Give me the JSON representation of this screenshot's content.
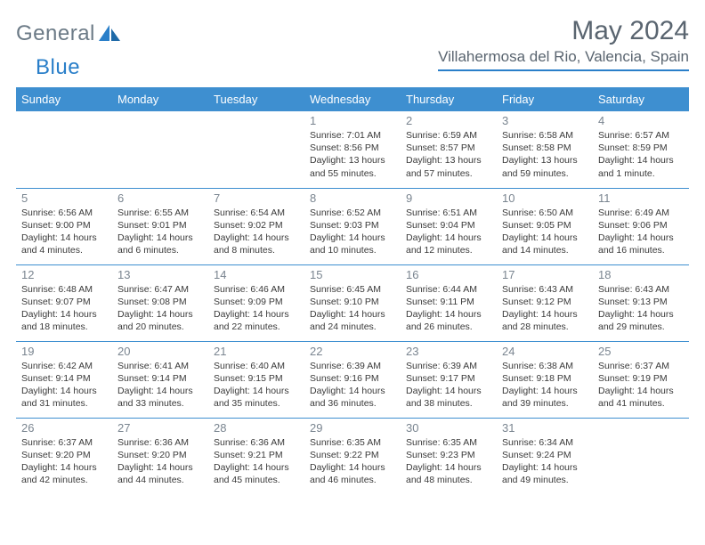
{
  "brand": {
    "part1": "General",
    "part2": "Blue"
  },
  "title": "May 2024",
  "location": "Villahermosa del Rio, Valencia, Spain",
  "colors": {
    "header_bg": "#3e8fd0",
    "header_text": "#ffffff",
    "rule": "#3e8fd0",
    "daynum": "#7a8590",
    "body_text": "#3a3a3a",
    "title_text": "#5a6570",
    "logo_gray": "#6b7a86",
    "logo_blue": "#2a7fc9",
    "background": "#ffffff"
  },
  "day_headers": [
    "Sunday",
    "Monday",
    "Tuesday",
    "Wednesday",
    "Thursday",
    "Friday",
    "Saturday"
  ],
  "weeks": [
    [
      null,
      null,
      null,
      {
        "n": "1",
        "sr": "7:01 AM",
        "ss": "8:56 PM",
        "dl": "13 hours and 55 minutes."
      },
      {
        "n": "2",
        "sr": "6:59 AM",
        "ss": "8:57 PM",
        "dl": "13 hours and 57 minutes."
      },
      {
        "n": "3",
        "sr": "6:58 AM",
        "ss": "8:58 PM",
        "dl": "13 hours and 59 minutes."
      },
      {
        "n": "4",
        "sr": "6:57 AM",
        "ss": "8:59 PM",
        "dl": "14 hours and 1 minute."
      }
    ],
    [
      {
        "n": "5",
        "sr": "6:56 AM",
        "ss": "9:00 PM",
        "dl": "14 hours and 4 minutes."
      },
      {
        "n": "6",
        "sr": "6:55 AM",
        "ss": "9:01 PM",
        "dl": "14 hours and 6 minutes."
      },
      {
        "n": "7",
        "sr": "6:54 AM",
        "ss": "9:02 PM",
        "dl": "14 hours and 8 minutes."
      },
      {
        "n": "8",
        "sr": "6:52 AM",
        "ss": "9:03 PM",
        "dl": "14 hours and 10 minutes."
      },
      {
        "n": "9",
        "sr": "6:51 AM",
        "ss": "9:04 PM",
        "dl": "14 hours and 12 minutes."
      },
      {
        "n": "10",
        "sr": "6:50 AM",
        "ss": "9:05 PM",
        "dl": "14 hours and 14 minutes."
      },
      {
        "n": "11",
        "sr": "6:49 AM",
        "ss": "9:06 PM",
        "dl": "14 hours and 16 minutes."
      }
    ],
    [
      {
        "n": "12",
        "sr": "6:48 AM",
        "ss": "9:07 PM",
        "dl": "14 hours and 18 minutes."
      },
      {
        "n": "13",
        "sr": "6:47 AM",
        "ss": "9:08 PM",
        "dl": "14 hours and 20 minutes."
      },
      {
        "n": "14",
        "sr": "6:46 AM",
        "ss": "9:09 PM",
        "dl": "14 hours and 22 minutes."
      },
      {
        "n": "15",
        "sr": "6:45 AM",
        "ss": "9:10 PM",
        "dl": "14 hours and 24 minutes."
      },
      {
        "n": "16",
        "sr": "6:44 AM",
        "ss": "9:11 PM",
        "dl": "14 hours and 26 minutes."
      },
      {
        "n": "17",
        "sr": "6:43 AM",
        "ss": "9:12 PM",
        "dl": "14 hours and 28 minutes."
      },
      {
        "n": "18",
        "sr": "6:43 AM",
        "ss": "9:13 PM",
        "dl": "14 hours and 29 minutes."
      }
    ],
    [
      {
        "n": "19",
        "sr": "6:42 AM",
        "ss": "9:14 PM",
        "dl": "14 hours and 31 minutes."
      },
      {
        "n": "20",
        "sr": "6:41 AM",
        "ss": "9:14 PM",
        "dl": "14 hours and 33 minutes."
      },
      {
        "n": "21",
        "sr": "6:40 AM",
        "ss": "9:15 PM",
        "dl": "14 hours and 35 minutes."
      },
      {
        "n": "22",
        "sr": "6:39 AM",
        "ss": "9:16 PM",
        "dl": "14 hours and 36 minutes."
      },
      {
        "n": "23",
        "sr": "6:39 AM",
        "ss": "9:17 PM",
        "dl": "14 hours and 38 minutes."
      },
      {
        "n": "24",
        "sr": "6:38 AM",
        "ss": "9:18 PM",
        "dl": "14 hours and 39 minutes."
      },
      {
        "n": "25",
        "sr": "6:37 AM",
        "ss": "9:19 PM",
        "dl": "14 hours and 41 minutes."
      }
    ],
    [
      {
        "n": "26",
        "sr": "6:37 AM",
        "ss": "9:20 PM",
        "dl": "14 hours and 42 minutes."
      },
      {
        "n": "27",
        "sr": "6:36 AM",
        "ss": "9:20 PM",
        "dl": "14 hours and 44 minutes."
      },
      {
        "n": "28",
        "sr": "6:36 AM",
        "ss": "9:21 PM",
        "dl": "14 hours and 45 minutes."
      },
      {
        "n": "29",
        "sr": "6:35 AM",
        "ss": "9:22 PM",
        "dl": "14 hours and 46 minutes."
      },
      {
        "n": "30",
        "sr": "6:35 AM",
        "ss": "9:23 PM",
        "dl": "14 hours and 48 minutes."
      },
      {
        "n": "31",
        "sr": "6:34 AM",
        "ss": "9:24 PM",
        "dl": "14 hours and 49 minutes."
      },
      null
    ]
  ],
  "labels": {
    "sunrise": "Sunrise:",
    "sunset": "Sunset:",
    "daylight": "Daylight:"
  }
}
